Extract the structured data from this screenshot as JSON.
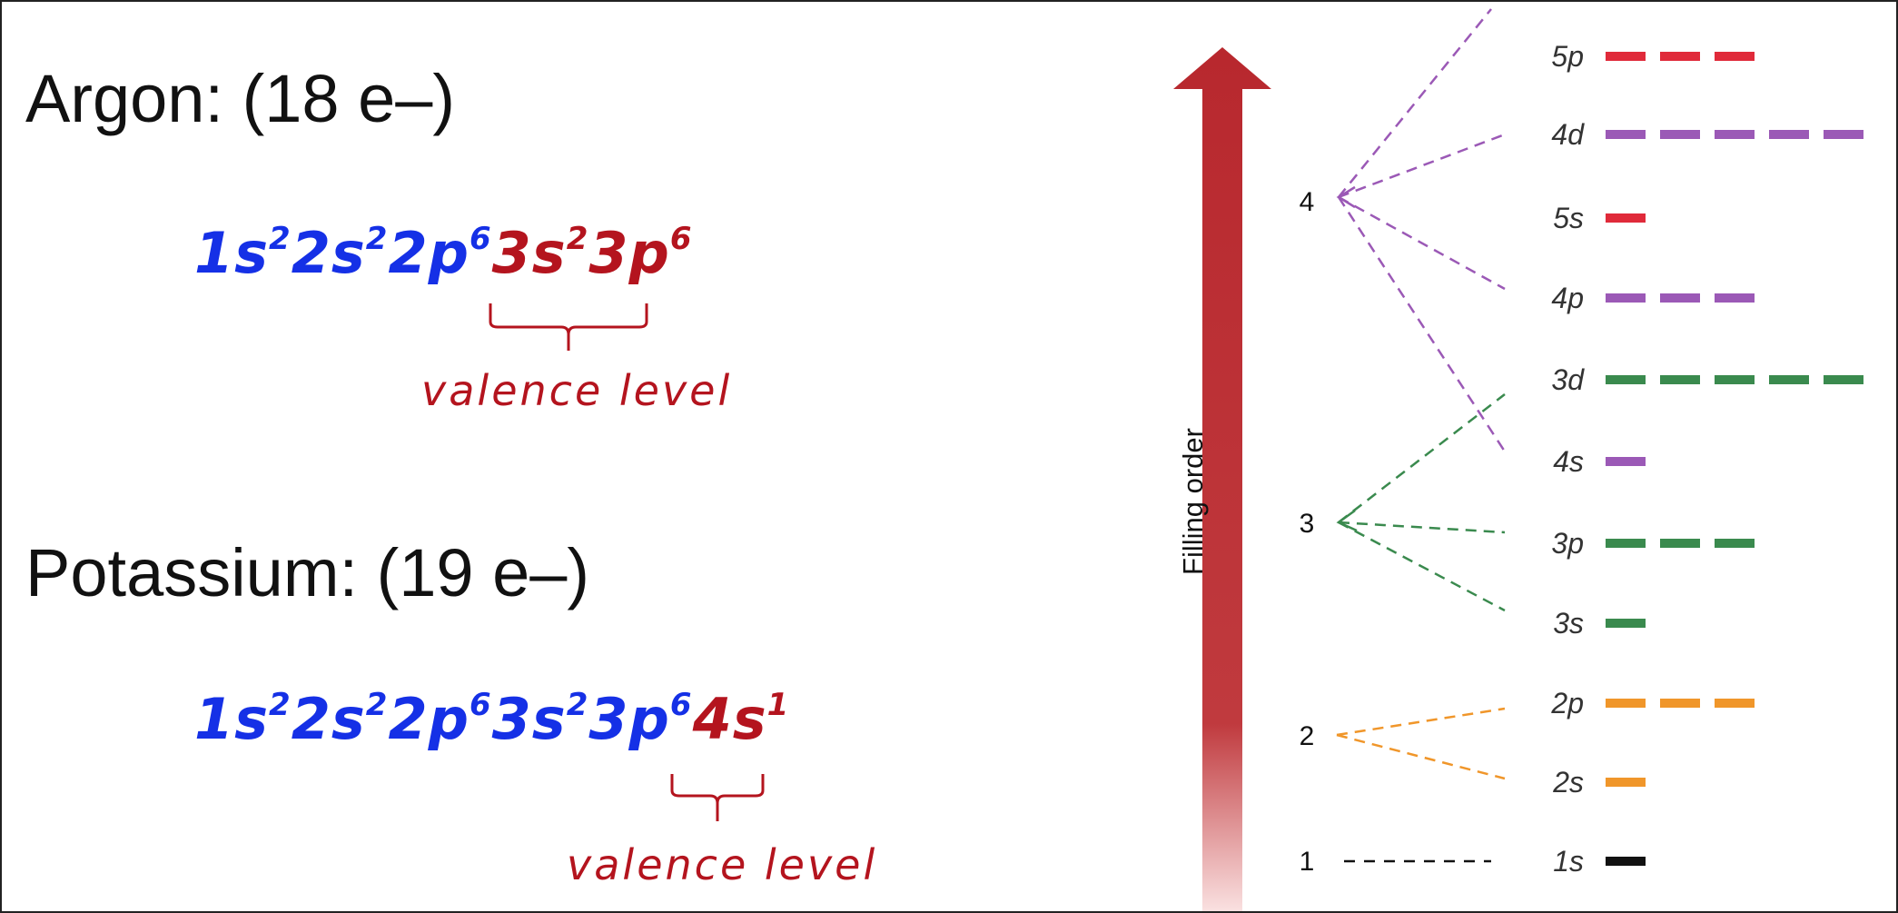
{
  "argon": {
    "title": "Argon:  (18 e–)",
    "config_core": [
      {
        "base": "1s",
        "exp": "2"
      },
      {
        "base": "2s",
        "exp": "2"
      },
      {
        "base": "2p",
        "exp": "6"
      }
    ],
    "config_valence": [
      {
        "base": "3s",
        "exp": "2"
      },
      {
        "base": "3p",
        "exp": "6"
      }
    ],
    "valence_label": "valence level"
  },
  "potassium": {
    "title": "Potassium:  (19 e–)",
    "config_core": [
      {
        "base": "1s",
        "exp": "2"
      },
      {
        "base": "2s",
        "exp": "2"
      },
      {
        "base": "2p",
        "exp": "6"
      },
      {
        "base": "3s",
        "exp": "2"
      },
      {
        "base": "3p",
        "exp": "6"
      }
    ],
    "config_valence": [
      {
        "base": "4s",
        "exp": "1"
      }
    ],
    "valence_label": "valence level"
  },
  "diagram": {
    "axis_label": "Filling order",
    "levels": [
      {
        "n": "1",
        "color": "#111111"
      },
      {
        "n": "2",
        "color": "#f0962a"
      },
      {
        "n": "3",
        "color": "#3a8a4e"
      },
      {
        "n": "4",
        "color": "#9b59b6"
      }
    ],
    "orbitals": [
      {
        "label": "1s",
        "level": "1",
        "dashes": 1
      },
      {
        "label": "2s",
        "level": "2",
        "dashes": 1
      },
      {
        "label": "2p",
        "level": "2",
        "dashes": 3
      },
      {
        "label": "3s",
        "level": "3",
        "dashes": 1
      },
      {
        "label": "3p",
        "level": "3",
        "dashes": 3
      },
      {
        "label": "4s",
        "level": "4",
        "dashes": 1
      },
      {
        "label": "3d",
        "level": "3",
        "dashes": 5
      },
      {
        "label": "4p",
        "level": "4",
        "dashes": 3
      },
      {
        "label": "5s",
        "level": "5",
        "dashes": 1
      },
      {
        "label": "4d",
        "level": "4",
        "dashes": 5
      },
      {
        "label": "5p",
        "level": "5",
        "dashes": 3
      }
    ],
    "colors": {
      "level1": "#111111",
      "level2": "#f0962a",
      "level3": "#3a8a4e",
      "level4": "#9b59b6",
      "level5": "#e02a3a",
      "arrow": "#b8282e",
      "configCore": "#1530e6",
      "configValence": "#b4141e"
    }
  }
}
